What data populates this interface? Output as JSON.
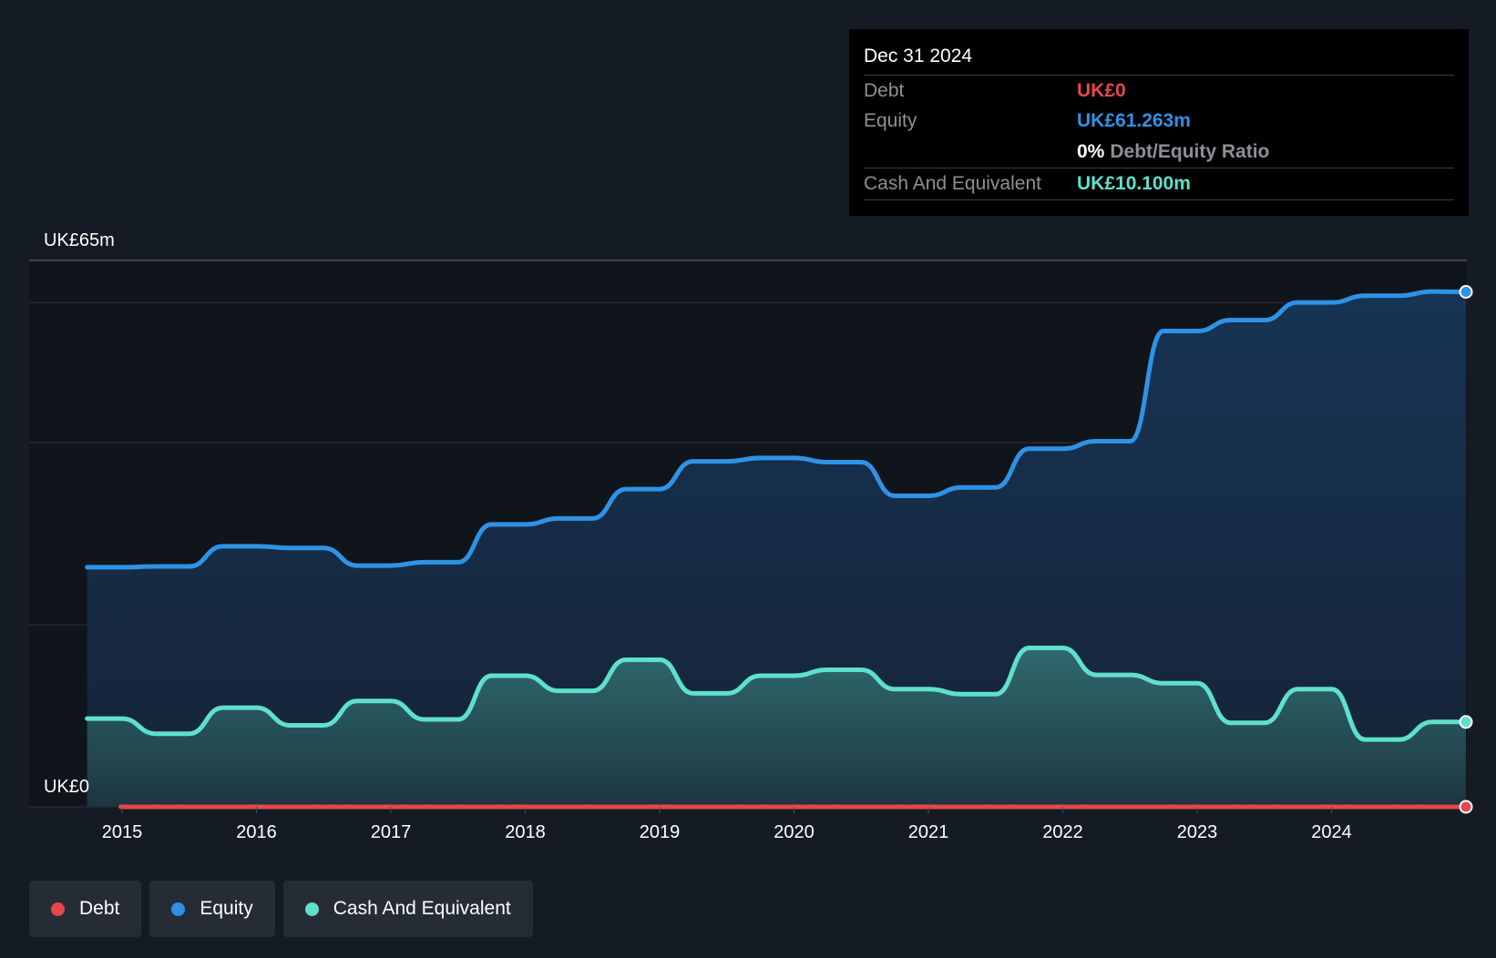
{
  "chart_data": {
    "type": "area",
    "y_tick_labels": {
      "top": "UK£65m",
      "bottom": "UK£0"
    },
    "ylim": [
      0,
      65
    ],
    "x_tick_labels": [
      "2015",
      "2016",
      "2017",
      "2018",
      "2019",
      "2020",
      "2021",
      "2022",
      "2023",
      "2024"
    ],
    "xlim": [
      2014.74,
      2025.0
    ],
    "grid": true,
    "legend_position": "bottom-left",
    "series": [
      {
        "name": "Debt",
        "color": "#e5474b",
        "fill": false,
        "x": [
          2014.99,
          2025.0
        ],
        "values": [
          0,
          0
        ]
      },
      {
        "name": "Equity",
        "color": "#2e93e6",
        "fill": true,
        "x": [
          2014.5,
          2014.74,
          2015.0,
          2015.25,
          2015.5,
          2015.75,
          2016.0,
          2016.25,
          2016.5,
          2016.75,
          2017.0,
          2017.25,
          2017.5,
          2017.75,
          2018.0,
          2018.25,
          2018.5,
          2018.75,
          2019.0,
          2019.25,
          2019.5,
          2019.75,
          2020.0,
          2020.25,
          2020.5,
          2020.75,
          2021.0,
          2021.25,
          2021.5,
          2021.75,
          2022.0,
          2022.25,
          2022.5,
          2022.75,
          2023.0,
          2023.25,
          2023.5,
          2023.75,
          2024.0,
          2024.25,
          2024.5,
          2024.75,
          2025.0
        ],
        "values": [
          28.5,
          28.5,
          28.5,
          28.6,
          28.6,
          31.0,
          31.0,
          30.8,
          30.8,
          28.7,
          28.7,
          29.1,
          29.1,
          33.6,
          33.6,
          34.3,
          34.3,
          37.8,
          37.8,
          41.1,
          41.1,
          41.5,
          41.5,
          41.0,
          41.0,
          37.0,
          37.0,
          38.0,
          38.0,
          42.6,
          42.6,
          43.5,
          43.5,
          56.6,
          56.6,
          57.9,
          57.9,
          60.0,
          60.0,
          60.8,
          60.8,
          61.3,
          61.263
        ]
      },
      {
        "name": "Cash And Equivalent",
        "color": "#5ee0cc",
        "fill": true,
        "x": [
          2014.5,
          2014.74,
          2015.0,
          2015.25,
          2015.5,
          2015.75,
          2016.0,
          2016.25,
          2016.5,
          2016.75,
          2017.0,
          2017.25,
          2017.5,
          2017.75,
          2018.0,
          2018.25,
          2018.5,
          2018.75,
          2019.0,
          2019.25,
          2019.5,
          2019.75,
          2020.0,
          2020.25,
          2020.5,
          2020.75,
          2021.0,
          2021.25,
          2021.5,
          2021.75,
          2022.0,
          2022.25,
          2022.5,
          2022.75,
          2023.0,
          2023.25,
          2023.5,
          2023.75,
          2024.0,
          2024.25,
          2024.5,
          2024.75,
          2025.0
        ],
        "values": [
          10.5,
          10.5,
          10.5,
          8.7,
          8.7,
          11.8,
          11.8,
          9.7,
          9.7,
          12.6,
          12.6,
          10.4,
          10.4,
          15.6,
          15.6,
          13.8,
          13.8,
          17.5,
          17.5,
          13.5,
          13.5,
          15.6,
          15.6,
          16.3,
          16.3,
          14.0,
          14.0,
          13.4,
          13.4,
          18.9,
          18.9,
          15.7,
          15.7,
          14.7,
          14.7,
          10.0,
          10.0,
          14.0,
          14.0,
          8.0,
          8.0,
          10.1,
          10.1
        ]
      }
    ]
  },
  "tooltip": {
    "date": "Dec 31 2024",
    "debt_label": "Debt",
    "debt_value": "UK£0",
    "equity_label": "Equity",
    "equity_value": "UK£61.263m",
    "ratio_value": "0%",
    "ratio_label": "Debt/Equity Ratio",
    "cash_label": "Cash And Equivalent",
    "cash_value": "UK£10.100m"
  },
  "legend": {
    "items": [
      {
        "label": "Debt",
        "color": "#e5474b"
      },
      {
        "label": "Equity",
        "color": "#2e93e6"
      },
      {
        "label": "Cash And Equivalent",
        "color": "#5ee0cc"
      }
    ]
  }
}
